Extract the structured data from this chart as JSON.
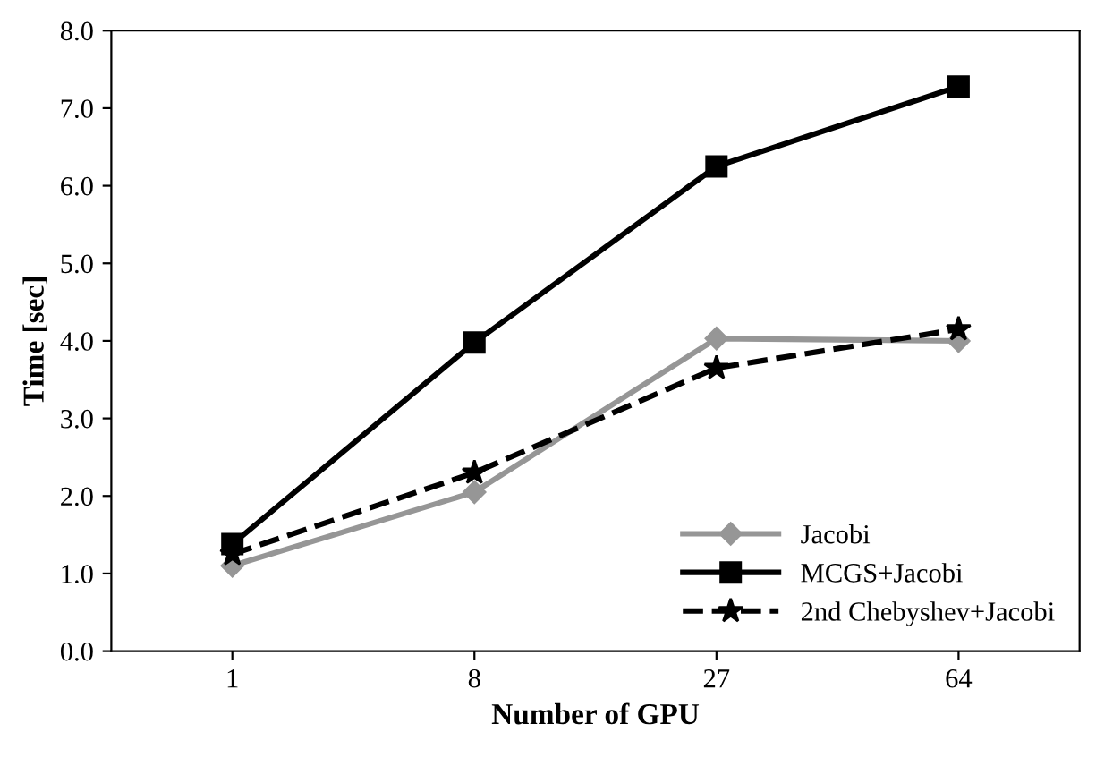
{
  "chart_data": {
    "type": "line",
    "xlabel": "Number of GPU",
    "ylabel": "Time [sec]",
    "categories": [
      "1",
      "8",
      "27",
      "64"
    ],
    "series": [
      {
        "name": "Jacobi",
        "color": "#969696",
        "marker": "diamond",
        "line_style": "solid",
        "values": [
          1.1,
          2.05,
          4.03,
          4.0
        ]
      },
      {
        "name": "MCGS+Jacobi",
        "color": "#000000",
        "marker": "square",
        "line_style": "solid",
        "values": [
          1.38,
          3.98,
          6.25,
          7.28
        ]
      },
      {
        "name": "2nd Chebyshev+Jacobi",
        "color": "#000000",
        "marker": "star",
        "line_style": "dashed",
        "values": [
          1.25,
          2.3,
          3.65,
          4.15
        ]
      }
    ],
    "ylim": [
      0,
      8
    ],
    "yticks": [
      {
        "value": 0,
        "label": "0.0"
      },
      {
        "value": 1,
        "label": "1.0"
      },
      {
        "value": 2,
        "label": "2.0"
      },
      {
        "value": 3,
        "label": "3.0"
      },
      {
        "value": 4,
        "label": "4.0"
      },
      {
        "value": 5,
        "label": "5.0"
      },
      {
        "value": 6,
        "label": "6.0"
      },
      {
        "value": 7,
        "label": "7.0"
      },
      {
        "value": 8,
        "label": "8.0"
      }
    ],
    "grid": false,
    "legend": "bottom right"
  }
}
